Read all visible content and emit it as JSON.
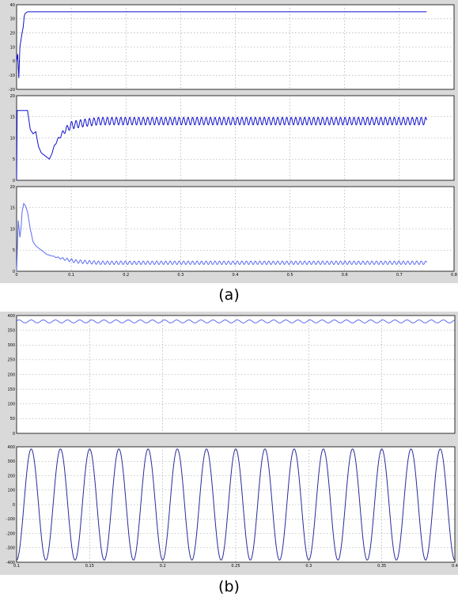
{
  "captions": {
    "a": "(a)",
    "b": "(b)"
  },
  "chart_data": [
    {
      "type": "line",
      "panel": "a-1",
      "color": "#1010d0",
      "xlim": [
        0,
        0.8
      ],
      "ylim": [
        -20,
        40
      ],
      "yticks": [
        "40",
        "30",
        "20",
        "10",
        "0",
        "-10",
        "-20"
      ],
      "series": [
        {
          "x": [
            0,
            0.002,
            0.004,
            0.006,
            0.008,
            0.01,
            0.012,
            0.014,
            0.016,
            0.02,
            0.025,
            0.03,
            0.75
          ],
          "values": [
            0,
            5,
            -12,
            10,
            15,
            20,
            24,
            32,
            34,
            35,
            35,
            35,
            35
          ]
        }
      ]
    },
    {
      "type": "line",
      "panel": "a-2",
      "color": "#1010d0",
      "xlim": [
        0,
        0.8
      ],
      "ylim": [
        0,
        20
      ],
      "yticks": [
        "20",
        "15",
        "10",
        "5",
        "0"
      ],
      "series": [
        {
          "x": [
            0,
            0.001,
            0.02,
            0.025,
            0.03,
            0.035,
            0.04,
            0.045,
            0.05,
            0.055,
            0.06,
            0.065,
            0.07,
            0.08,
            0.09,
            0.1,
            0.12,
            0.15,
            0.75
          ],
          "values": [
            0,
            16.5,
            16.5,
            12,
            11,
            11.5,
            8,
            6.5,
            6,
            5.5,
            5,
            6.5,
            8.5,
            10.5,
            12,
            13,
            13.5,
            14,
            14
          ],
          "ripple": 0.9,
          "ripple_period": 0.0082
        }
      ]
    },
    {
      "type": "line",
      "panel": "a-3",
      "color": "#5a6cf0",
      "xlim": [
        0,
        0.8
      ],
      "ylim": [
        0,
        20
      ],
      "yticks": [
        "20",
        "15",
        "10",
        "5",
        "0"
      ],
      "xticks": [
        "0",
        "0.1",
        "0.2",
        "0.3",
        "0.4",
        "0.5",
        "0.6",
        "0.7",
        "0.8"
      ],
      "series": [
        {
          "x": [
            0,
            0.003,
            0.006,
            0.008,
            0.01,
            0.013,
            0.016,
            0.02,
            0.025,
            0.03,
            0.035,
            0.045,
            0.055,
            0.07,
            0.09,
            0.11,
            0.15,
            0.2,
            0.75
          ],
          "values": [
            0,
            12,
            8,
            10,
            14,
            16,
            15.5,
            14,
            10,
            7,
            6,
            5,
            4,
            3.4,
            2.8,
            2.3,
            2,
            2,
            2
          ],
          "ripple": 0.4,
          "ripple_period": 0.0082
        }
      ]
    },
    {
      "type": "line",
      "panel": "b-1",
      "color": "#5a6cf0",
      "xlim": [
        0.1,
        0.4
      ],
      "ylim": [
        0,
        400
      ],
      "yticks": [
        "400",
        "350",
        "300",
        "250",
        "200",
        "150",
        "100",
        "50",
        "0"
      ],
      "series": [
        {
          "mean": 380,
          "amplitude": 5,
          "period": 0.0083
        }
      ]
    },
    {
      "type": "line",
      "panel": "b-2",
      "color": "#2a2a9a",
      "xlim": [
        0.1,
        0.4
      ],
      "ylim": [
        -400,
        400
      ],
      "yticks": [
        "400",
        "300",
        "200",
        "100",
        "0",
        "-100",
        "-200",
        "-300",
        "-400"
      ],
      "xticks": [
        "0.1",
        "0.15",
        "0.2",
        "0.25",
        "0.3",
        "0.35",
        "0.4"
      ],
      "series": [
        {
          "mean": 0,
          "amplitude": 385,
          "period": 0.02,
          "phase_time": 0.105
        }
      ]
    }
  ]
}
